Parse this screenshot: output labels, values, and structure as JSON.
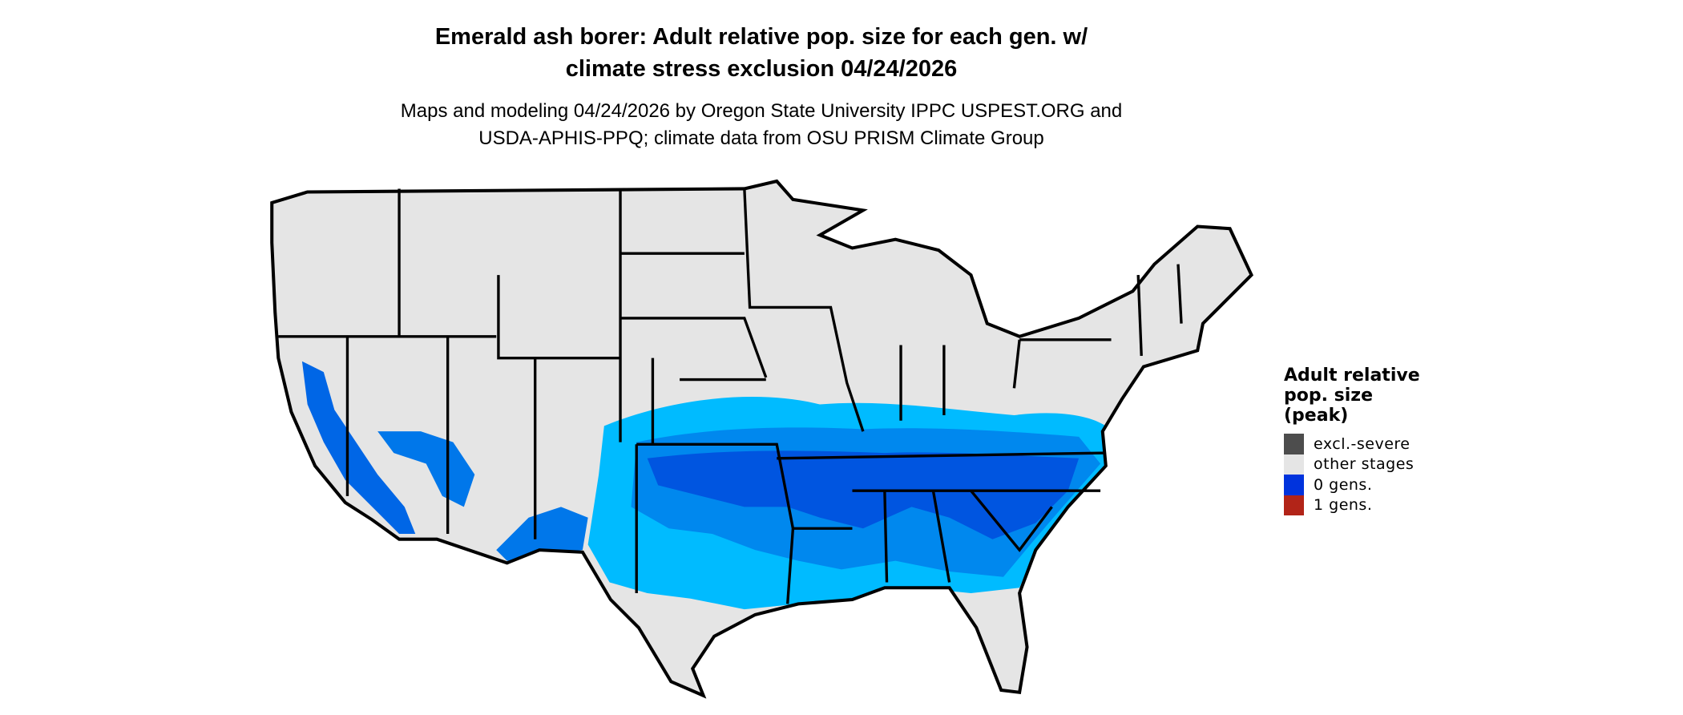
{
  "title": {
    "line1": "Emerald ash borer: Adult relative pop. size for each gen. w/",
    "line2": "climate stress exclusion 04/24/2026"
  },
  "subtitle": {
    "line1": "Maps and modeling 04/24/2026 by Oregon State University IPPC USPEST.ORG and",
    "line2": "USDA-APHIS-PPQ; climate data from OSU PRISM Climate Group"
  },
  "legend": {
    "title_lines": [
      "Adult relative",
      "pop. size",
      "(peak)"
    ],
    "items": [
      {
        "label": "excl.-severe",
        "color": "#4d4d4d"
      },
      {
        "label": "other stages",
        "color": "#e5e5e5"
      },
      {
        "label": "0 gens.",
        "color": "#0033dd"
      },
      {
        "label": "1 gens.",
        "color": "#b22418"
      }
    ]
  },
  "map": {
    "region": "Contiguous United States",
    "land_color": "#e5e5e5",
    "border_color": "#000000",
    "intensity_colors": [
      "#00bbff",
      "#0088ee",
      "#0066e6",
      "#0044dd"
    ]
  }
}
